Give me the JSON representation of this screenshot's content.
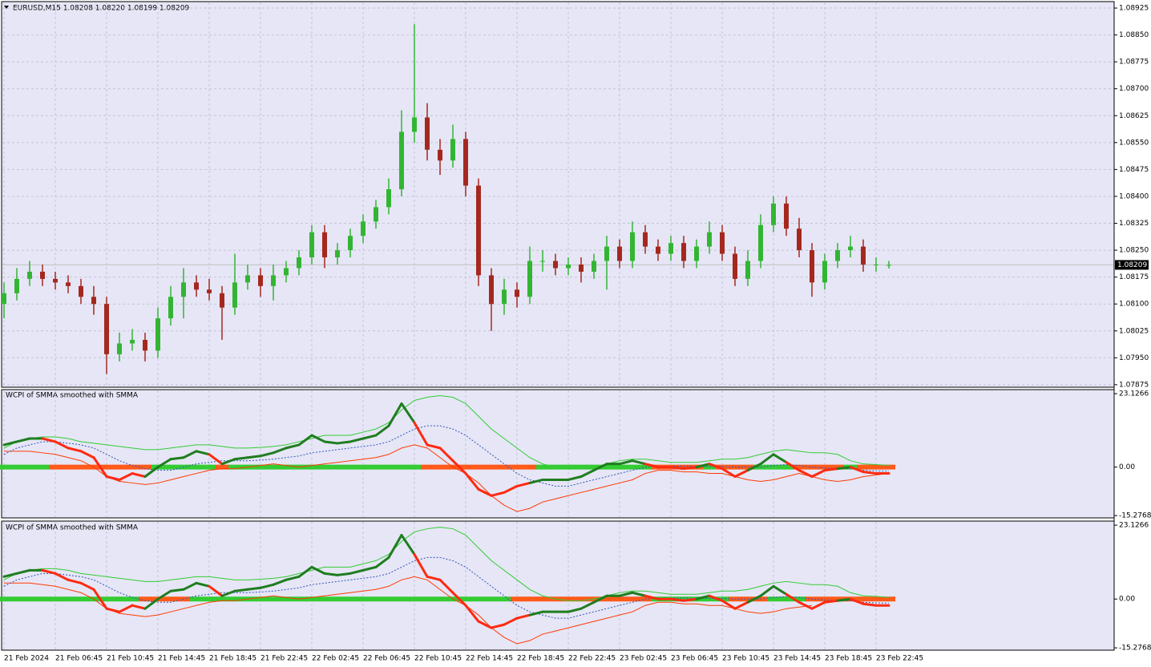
{
  "chart_data": [
    {
      "type": "candlestick",
      "title": "EURUSD,M15  1.08208 1.08220 1.08199 1.08209",
      "categories": [
        "21 Feb 2024",
        null,
        null,
        null,
        "21 Feb 06:45",
        null,
        null,
        null,
        "21 Feb 10:45",
        null,
        null,
        null,
        "21 Feb 14:45",
        null,
        null,
        null,
        "21 Feb 18:45",
        null,
        null,
        null,
        "21 Feb 22:45",
        null,
        null,
        null,
        "22 Feb 02:45",
        null,
        null,
        null,
        "22 Feb 06:45",
        null,
        null,
        null,
        "22 Feb 10:45",
        null,
        null,
        null,
        "22 Feb 14:45",
        null,
        null,
        null,
        "22 Feb 18:45",
        null,
        null,
        null,
        "22 Feb 22:45",
        null,
        null,
        null,
        "23 Feb 02:45",
        null,
        null,
        null,
        "23 Feb 06:45",
        null,
        null,
        null,
        "23 Feb 10:45",
        null,
        null,
        null,
        "23 Feb 14:45",
        null,
        null,
        null,
        "23 Feb 18:45",
        null,
        null,
        null,
        "23 Feb 22:45",
        null
      ],
      "open": [
        1.081,
        1.0813,
        1.0817,
        1.0819,
        1.0817,
        1.0816,
        1.0815,
        1.0812,
        1.081,
        1.0796,
        1.0799,
        1.08,
        1.0797,
        1.0806,
        1.0812,
        1.0816,
        1.0814,
        1.0813,
        1.0809,
        1.0816,
        1.0818,
        1.0815,
        1.0818,
        1.082,
        1.0823,
        1.083,
        1.0823,
        1.0825,
        1.0829,
        1.0833,
        1.0837,
        1.0842,
        1.0858,
        1.0862,
        1.0853,
        1.085,
        1.0856,
        1.0843,
        1.0818,
        1.081,
        1.0814,
        1.0812,
        1.0822,
        1.0822,
        1.082,
        1.0821,
        1.0819,
        1.0822,
        1.0826,
        1.0822,
        1.083,
        1.0826,
        1.0824,
        1.0827,
        1.0822,
        1.0826,
        1.083,
        1.0824,
        1.0817,
        1.0822,
        1.0832,
        1.0838,
        1.0831,
        1.0825,
        1.0816,
        1.0822,
        1.0825,
        1.0826,
        1.0821,
        1.08208
      ],
      "high": [
        1.0816,
        1.082,
        1.0822,
        1.0821,
        1.0819,
        1.0818,
        1.0817,
        1.0815,
        1.0812,
        1.0802,
        1.0803,
        1.0802,
        1.0809,
        1.0815,
        1.082,
        1.0818,
        1.0817,
        1.0815,
        1.0824,
        1.0821,
        1.082,
        1.0821,
        1.0822,
        1.0825,
        1.0832,
        1.0832,
        1.0827,
        1.0831,
        1.0835,
        1.0839,
        1.0845,
        1.0864,
        1.0888,
        1.0866,
        1.0856,
        1.086,
        1.0858,
        1.0845,
        1.082,
        1.0817,
        1.0816,
        1.0826,
        1.0825,
        1.0824,
        1.0823,
        1.0823,
        1.0824,
        1.0829,
        1.0828,
        1.0833,
        1.0832,
        1.0828,
        1.0829,
        1.0829,
        1.0828,
        1.0833,
        1.0832,
        1.0826,
        1.0825,
        1.0835,
        1.084,
        1.084,
        1.0834,
        1.0827,
        1.0824,
        1.0827,
        1.0829,
        1.0828,
        1.0823,
        1.0822
      ],
      "low": [
        1.0806,
        1.0811,
        1.0815,
        1.0815,
        1.0814,
        1.0813,
        1.081,
        1.0807,
        1.07905,
        1.0794,
        1.0797,
        1.0794,
        1.0795,
        1.0804,
        1.0806,
        1.0812,
        1.0811,
        1.08,
        1.0807,
        1.0814,
        1.0812,
        1.0811,
        1.0816,
        1.0818,
        1.0821,
        1.082,
        1.0821,
        1.0823,
        1.0827,
        1.0831,
        1.0835,
        1.084,
        1.0855,
        1.085,
        1.0846,
        1.0848,
        1.084,
        1.0815,
        1.08025,
        1.0807,
        1.0809,
        1.081,
        1.0819,
        1.0818,
        1.0818,
        1.0816,
        1.0817,
        1.0814,
        1.082,
        1.082,
        1.0824,
        1.0822,
        1.0822,
        1.082,
        1.082,
        1.0824,
        1.0822,
        1.0815,
        1.0815,
        1.082,
        1.083,
        1.0829,
        1.0823,
        1.0812,
        1.0814,
        1.082,
        1.0823,
        1.0819,
        1.0819,
        1.08199
      ],
      "close": [
        1.0813,
        1.0817,
        1.0819,
        1.0817,
        1.0816,
        1.0815,
        1.0812,
        1.081,
        1.0796,
        1.0799,
        1.08,
        1.0797,
        1.0806,
        1.0812,
        1.0816,
        1.0814,
        1.0813,
        1.0809,
        1.0816,
        1.0818,
        1.0815,
        1.0818,
        1.082,
        1.0823,
        1.083,
        1.0823,
        1.0825,
        1.0829,
        1.0833,
        1.0837,
        1.0842,
        1.0858,
        1.0862,
        1.0853,
        1.085,
        1.0856,
        1.0843,
        1.0818,
        1.081,
        1.0814,
        1.0812,
        1.0822,
        1.0822,
        1.082,
        1.0821,
        1.0819,
        1.0822,
        1.0826,
        1.0822,
        1.083,
        1.0826,
        1.0824,
        1.0827,
        1.0822,
        1.0826,
        1.083,
        1.0824,
        1.0817,
        1.0822,
        1.0832,
        1.0838,
        1.0831,
        1.0825,
        1.0816,
        1.0822,
        1.0825,
        1.0826,
        1.0821,
        1.0821,
        1.08209
      ],
      "color_up": "#33b533",
      "color_down": "#a5281e",
      "last_price": 1.08209,
      "ylim": [
        1.07868,
        1.08943
      ],
      "yticks": [
        1.08925,
        {
          "value": 1.0885,
          "label": "1.08850"
        },
        1.08775,
        {
          "value": 1.087,
          "label": "1.08700"
        },
        1.08625,
        {
          "value": 1.0855,
          "label": "1.08550"
        },
        1.08475,
        {
          "value": 1.084,
          "label": "1.08400"
        },
        1.08325,
        {
          "value": 1.0825,
          "label": "1.08250"
        },
        1.08175,
        {
          "value": 1.081,
          "label": "1.08100"
        },
        1.08025,
        {
          "value": 1.0795,
          "label": "1.07950"
        },
        1.07875
      ],
      "grid": true
    },
    {
      "type": "line",
      "title": "WCPI of SMMA smoothed with SMMA",
      "ylim": [
        -16.0,
        24.4
      ],
      "yticks": [
        23.1266,
        {
          "value": 0,
          "label": "0.00"
        },
        -15.2768
      ],
      "zero_bar": {
        "color_up": "#33cc33",
        "color_down": "#ff5a1a"
      },
      "series": [
        {
          "color": "#1f7d1f",
          "color_down": "#ff2a10",
          "width": 3,
          "values": [
            7,
            8,
            9,
            9,
            8,
            6,
            5,
            3,
            -3,
            -4,
            -2,
            -3,
            0,
            2.5,
            3,
            5,
            4,
            1,
            2.5,
            3,
            3.5,
            4.5,
            6,
            7,
            10,
            8,
            7.5,
            8,
            9,
            10,
            13,
            20,
            14,
            7,
            6,
            2,
            -2,
            -7,
            -9,
            -8,
            -6,
            -5,
            -4,
            -4,
            -4,
            -3,
            -1,
            1,
            1,
            2,
            1,
            0,
            0,
            -0.5,
            0,
            1,
            -0.5,
            -3,
            -1,
            1,
            4,
            1.5,
            -1,
            -3,
            -1,
            -0.5,
            0,
            -1.5,
            -2,
            -2
          ]
        },
        {
          "color": "#3355bb",
          "dash": true,
          "width": 1,
          "values": [
            4,
            6,
            7,
            8,
            8,
            7.5,
            7,
            6,
            4,
            2,
            0.5,
            -0.5,
            -1,
            -1,
            0,
            1,
            1.5,
            2,
            2,
            2,
            2.2,
            2.5,
            3,
            3.5,
            4.5,
            5,
            5.5,
            6,
            6.5,
            7,
            8,
            10,
            12,
            13,
            13,
            12,
            10,
            7,
            4,
            1,
            -2,
            -4,
            -5,
            -6,
            -6,
            -5,
            -4,
            -3,
            -2,
            -1,
            0,
            0.3,
            0.3,
            0.3,
            0.2,
            0.2,
            0.2,
            0,
            0,
            0,
            0.5,
            0.8,
            0.5,
            0,
            -0.3,
            -0.5,
            -0.5,
            -1,
            -1.2,
            -1.3
          ]
        },
        {
          "color": "#33cc33",
          "width": 1,
          "values": [
            6,
            8,
            9,
            9.5,
            9.5,
            9,
            8,
            7.5,
            7,
            6.5,
            6,
            5.5,
            5.5,
            6,
            6.5,
            7,
            7,
            6.5,
            6,
            6,
            6.2,
            6.5,
            7,
            8,
            9,
            10,
            10,
            10,
            11,
            12,
            14,
            18,
            21,
            22,
            22.5,
            22,
            20,
            16,
            12,
            9,
            6,
            3,
            1,
            0,
            -0.5,
            -0.5,
            0,
            1,
            2,
            2.5,
            2.5,
            2,
            1.5,
            1.5,
            1.5,
            2,
            2.5,
            2.5,
            3,
            4,
            5,
            5.5,
            5,
            4.5,
            4.5,
            4,
            2,
            1,
            0.8,
            0.5
          ]
        },
        {
          "color": "#ff3a00",
          "width": 1,
          "values": [
            5,
            5,
            5,
            4.5,
            4,
            3,
            2,
            0,
            -3,
            -4.5,
            -5,
            -5.5,
            -5,
            -4,
            -3,
            -2,
            -1,
            -0.5,
            -0.5,
            0,
            0.5,
            1,
            0.5,
            0,
            0.5,
            1,
            1.5,
            2,
            2.5,
            3,
            4,
            6,
            7,
            6,
            3,
            0,
            -2,
            -5,
            -9,
            -12,
            -14,
            -13,
            -11,
            -10,
            -9,
            -8,
            -7,
            -6,
            -5,
            -4,
            -2,
            -1,
            -1,
            -1.5,
            -1.5,
            -2,
            -2,
            -3,
            -4,
            -4.5,
            -4,
            -3,
            -2,
            -3,
            -4,
            -4.5,
            -4,
            -3,
            -2.5,
            -2
          ]
        }
      ]
    },
    {
      "type": "line",
      "title": "WCPI of SMMA smoothed with SMMA",
      "ylim": [
        -16.0,
        24.4
      ],
      "yticks": [
        23.1266,
        {
          "value": 0,
          "label": "0.00"
        },
        -15.2768
      ],
      "zero_bar": {
        "color_up": "#33cc33",
        "color_down": "#ff5a1a"
      },
      "series": [
        {
          "color": "#1f7d1f",
          "color_down": "#ff2a10",
          "width": 3,
          "values": [
            7,
            8,
            9,
            9,
            8,
            6,
            5,
            3,
            -3,
            -4,
            -2,
            -3,
            0,
            2.5,
            3,
            5,
            4,
            1,
            2.5,
            3,
            3.5,
            4.5,
            6,
            7,
            10,
            8,
            7.5,
            8,
            9,
            10,
            13,
            20,
            14,
            7,
            6,
            2,
            -2,
            -7,
            -9,
            -8,
            -6,
            -5,
            -4,
            -4,
            -4,
            -3,
            -1,
            1,
            1,
            2,
            1,
            0,
            0,
            -0.5,
            0,
            1,
            -0.5,
            -3,
            -1,
            1,
            4,
            1.5,
            -1,
            -3,
            -1,
            -0.5,
            0,
            -1.5,
            -2,
            -2
          ]
        },
        {
          "color": "#3355bb",
          "dash": true,
          "width": 1,
          "values": [
            4,
            6,
            7,
            8,
            8,
            7.5,
            7,
            6,
            4,
            2,
            0.5,
            -0.5,
            -1,
            -1,
            0,
            1,
            1.5,
            2,
            2,
            2,
            2.2,
            2.5,
            3,
            3.5,
            4.5,
            5,
            5.5,
            6,
            6.5,
            7,
            8,
            10,
            12,
            13,
            13,
            12,
            10,
            7,
            4,
            1,
            -2,
            -4,
            -5,
            -6,
            -6,
            -5,
            -4,
            -3,
            -2,
            -1,
            0,
            0.3,
            0.3,
            0.3,
            0.2,
            0.2,
            0.2,
            0,
            0,
            0,
            0.5,
            0.8,
            0.5,
            0,
            -0.3,
            -0.5,
            -0.5,
            -1,
            -1.2,
            -1.3
          ]
        },
        {
          "color": "#33cc33",
          "width": 1,
          "values": [
            6,
            8,
            9,
            9.5,
            9.5,
            9,
            8,
            7.5,
            7,
            6.5,
            6,
            5.5,
            5.5,
            6,
            6.5,
            7,
            7,
            6.5,
            6,
            6,
            6.2,
            6.5,
            7,
            8,
            9,
            10,
            10,
            10,
            11,
            12,
            14,
            18,
            21,
            22,
            22.5,
            22,
            20,
            16,
            12,
            9,
            6,
            3,
            1,
            0,
            -0.5,
            -0.5,
            0,
            1,
            2,
            2.5,
            2.5,
            2,
            1.5,
            1.5,
            1.5,
            2,
            2.5,
            2.5,
            3,
            4,
            5,
            5.5,
            5,
            4.5,
            4.5,
            4,
            2,
            1,
            0.8,
            0.5
          ]
        },
        {
          "color": "#ff3a00",
          "width": 1,
          "values": [
            5,
            5,
            5,
            4.5,
            4,
            3,
            2,
            0,
            -3,
            -4.5,
            -5,
            -5.5,
            -5,
            -4,
            -3,
            -2,
            -1,
            -0.5,
            -0.5,
            0,
            0.5,
            1,
            0.5,
            0,
            0.5,
            1,
            1.5,
            2,
            2.5,
            3,
            4,
            6,
            7,
            6,
            3,
            0,
            -2,
            -5,
            -9,
            -12,
            -14,
            -13,
            -11,
            -10,
            -9,
            -8,
            -7,
            -6,
            -5,
            -4,
            -2,
            -1,
            -1,
            -1.5,
            -1.5,
            -2,
            -2,
            -3,
            -4,
            -4.5,
            -4,
            -3,
            -2.5,
            -2
          ]
        }
      ]
    }
  ]
}
